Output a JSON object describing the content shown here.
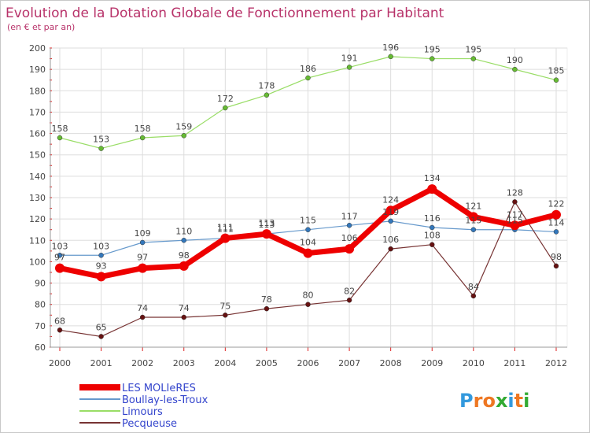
{
  "chart_data": {
    "type": "line",
    "title": "Evolution de la Dotation Globale de Fonctionnement par Habitant",
    "subtitle": "(en € et par an)",
    "xlabel": "",
    "ylabel": "",
    "ylim": [
      60,
      200
    ],
    "yticks": [
      60,
      70,
      80,
      90,
      100,
      110,
      120,
      130,
      140,
      150,
      160,
      170,
      180,
      190,
      200
    ],
    "grid": true,
    "legend_position": "bottom-left",
    "x": [
      "2000",
      "2001",
      "2002",
      "2003",
      "2004",
      "2005",
      "2006",
      "2007",
      "2008",
      "2009",
      "2010",
      "2011",
      "2012"
    ],
    "series": [
      {
        "name": "Limours",
        "color": "#99dd66",
        "marker": "#66bb33",
        "width": 1.2,
        "values": [
          158,
          153,
          158,
          159,
          172,
          178,
          186,
          191,
          196,
          195,
          195,
          190,
          185
        ]
      },
      {
        "name": "Boullay-les-Troux",
        "color": "#6699cc",
        "marker": "#3377bb",
        "width": 1.2,
        "values": [
          103,
          103,
          109,
          110,
          111,
          113,
          115,
          117,
          119,
          116,
          115,
          115,
          114
        ]
      },
      {
        "name": "Pecqueuse",
        "color": "#773333",
        "marker": "#661111",
        "width": 1.2,
        "values": [
          68,
          65,
          74,
          74,
          75,
          78,
          80,
          82,
          106,
          108,
          84,
          128,
          98
        ]
      },
      {
        "name": "LES MOLIeRES",
        "color": "#ee0000",
        "marker": "#ee0000",
        "width": 7,
        "values": [
          97,
          93,
          97,
          98,
          111,
          113,
          104,
          106,
          124,
          134,
          121,
          117,
          122
        ]
      }
    ],
    "legend_order": [
      "LES MOLIeRES",
      "Boullay-les-Troux",
      "Limours",
      "Pecqueuse"
    ]
  },
  "branding": {
    "logo_letters": [
      "P",
      "r",
      "o",
      "x",
      "i",
      "t",
      "i"
    ],
    "logo_colors": [
      "#3399dd",
      "#ee7722",
      "#ee7722",
      "#33aa33",
      "#3399dd",
      "#ee7722",
      "#33aa33"
    ],
    "background_color": "#ffffff",
    "grid_color": "#dddddd",
    "axis_color": "#999999",
    "title_color": "#b8336a"
  }
}
